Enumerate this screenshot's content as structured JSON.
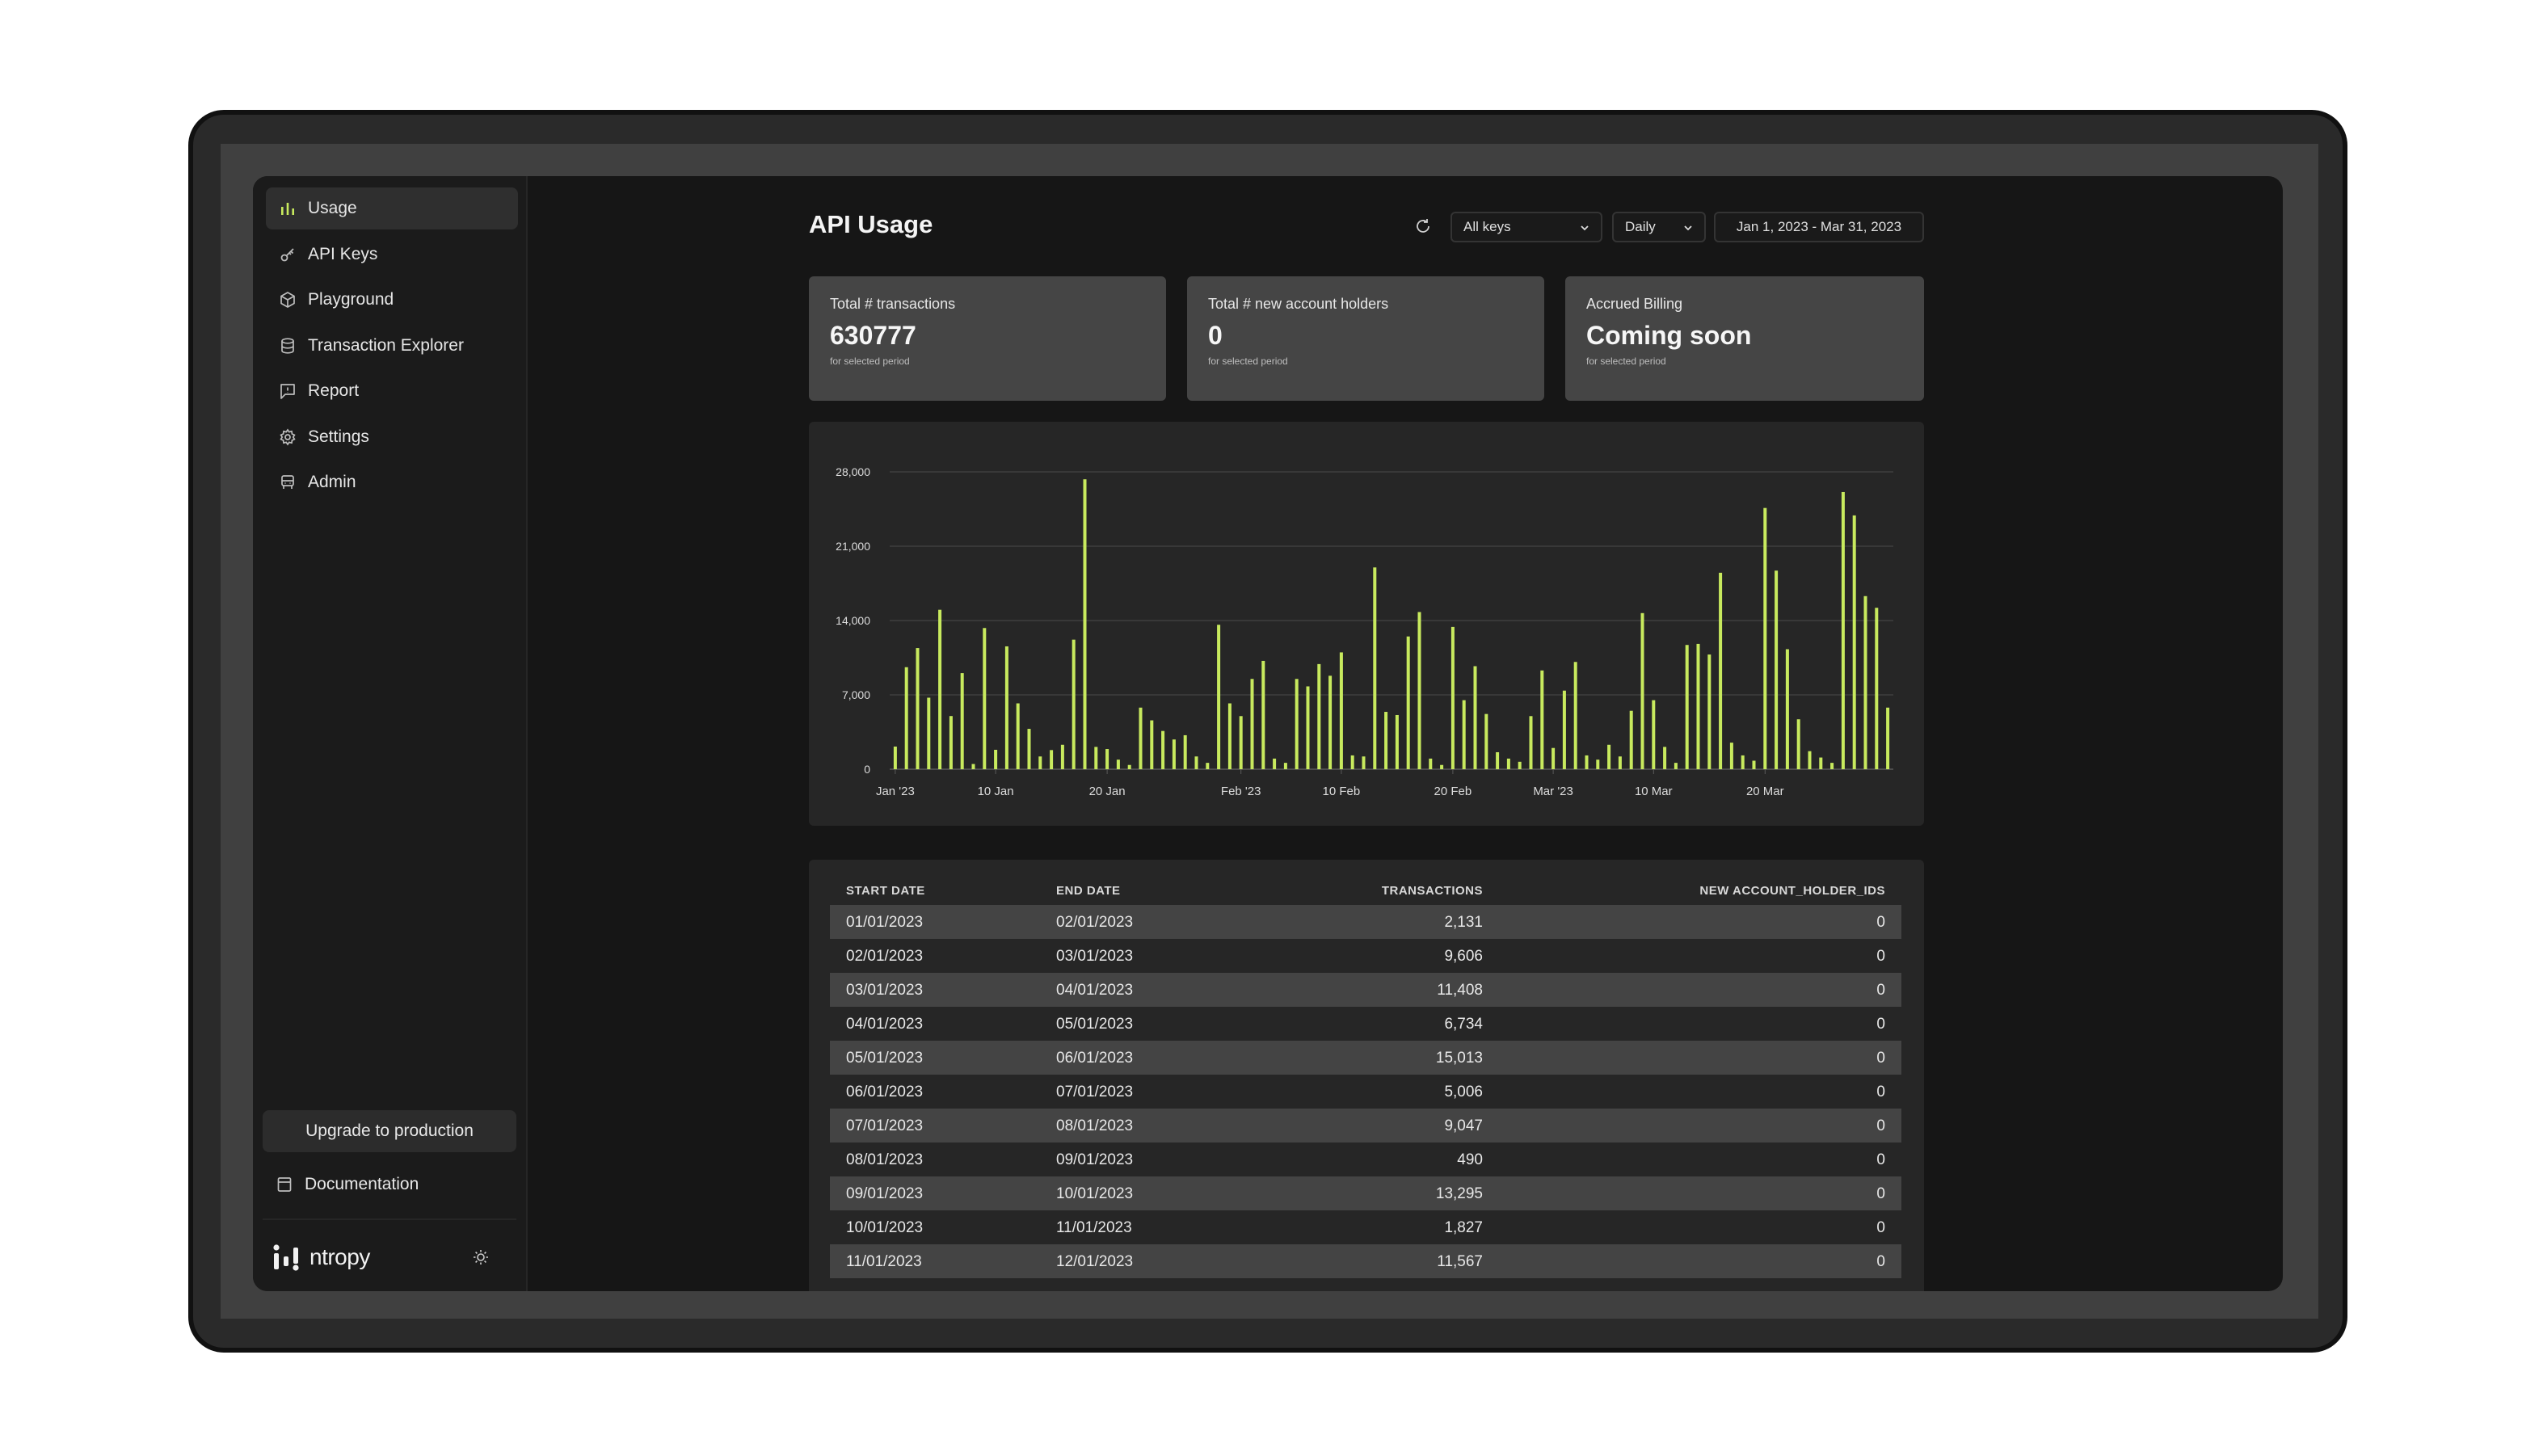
{
  "sidebar": {
    "items": [
      {
        "label": "Usage",
        "icon": "bar-chart-icon",
        "active": true
      },
      {
        "label": "API Keys",
        "icon": "key-icon"
      },
      {
        "label": "Playground",
        "icon": "cube-icon"
      },
      {
        "label": "Transaction Explorer",
        "icon": "database-icon"
      },
      {
        "label": "Report",
        "icon": "flag-message-icon"
      },
      {
        "label": "Settings",
        "icon": "gear-icon"
      },
      {
        "label": "Admin",
        "icon": "admin-icon"
      }
    ],
    "upgrade_label": "Upgrade to production",
    "docs_label": "Documentation",
    "brand": "ntropy"
  },
  "header": {
    "title": "API Usage",
    "keys_select": "All keys",
    "interval_select": "Daily",
    "date_range": "Jan 1, 2023 - Mar 31, 2023"
  },
  "cards": [
    {
      "label": "Total # transactions",
      "value": "630777",
      "sub": "for selected period"
    },
    {
      "label": "Total # new account holders",
      "value": "0",
      "sub": "for selected period"
    },
    {
      "label": "Accrued Billing",
      "value": "Coming soon",
      "sub": "for selected period"
    }
  ],
  "colors": {
    "accent": "#c8ea5e",
    "background": "#161616",
    "card": "#454545"
  },
  "chart_data": {
    "type": "bar",
    "ylim": [
      0,
      28000
    ],
    "y_ticks": [
      "0",
      "7,000",
      "14,000",
      "21,000",
      "28,000"
    ],
    "x_tick_labels": [
      "Jan '23",
      "10 Jan",
      "20 Jan",
      "Feb '23",
      "10 Feb",
      "20 Feb",
      "Mar '23",
      "10 Mar",
      "20 Mar"
    ],
    "x_tick_days": [
      1,
      10,
      20,
      32,
      41,
      51,
      60,
      69,
      79
    ],
    "grid": true,
    "values": [
      2131,
      9606,
      11408,
      6734,
      15013,
      5006,
      9047,
      490,
      13295,
      1827,
      11567,
      6200,
      3800,
      1200,
      1800,
      2300,
      12200,
      27300,
      2100,
      1900,
      900,
      400,
      5800,
      4600,
      3600,
      2800,
      3200,
      1200,
      600,
      13600,
      6200,
      5000,
      8500,
      10200,
      1000,
      600,
      8500,
      7800,
      9900,
      8800,
      11000,
      1300,
      1200,
      19000,
      5400,
      5100,
      12500,
      14800,
      1000,
      400,
      13400,
      6500,
      9700,
      5200,
      1600,
      1000,
      700,
      5000,
      9300,
      2000,
      7400,
      10100,
      1300,
      900,
      2300,
      1200,
      5500,
      14700,
      6500,
      2100,
      600,
      11700,
      11800,
      10800,
      18500,
      2500,
      1300,
      800,
      24600,
      18700,
      11300,
      4700,
      1700,
      1100,
      600,
      26100,
      23900,
      16300,
      15200,
      5800
    ]
  },
  "table": {
    "headers": [
      "START DATE",
      "END DATE",
      "TRANSACTIONS",
      "NEW ACCOUNT_HOLDER_IDS"
    ],
    "rows": [
      [
        "01/01/2023",
        "02/01/2023",
        "2,131",
        "0"
      ],
      [
        "02/01/2023",
        "03/01/2023",
        "9,606",
        "0"
      ],
      [
        "03/01/2023",
        "04/01/2023",
        "11,408",
        "0"
      ],
      [
        "04/01/2023",
        "05/01/2023",
        "6,734",
        "0"
      ],
      [
        "05/01/2023",
        "06/01/2023",
        "15,013",
        "0"
      ],
      [
        "06/01/2023",
        "07/01/2023",
        "5,006",
        "0"
      ],
      [
        "07/01/2023",
        "08/01/2023",
        "9,047",
        "0"
      ],
      [
        "08/01/2023",
        "09/01/2023",
        "490",
        "0"
      ],
      [
        "09/01/2023",
        "10/01/2023",
        "13,295",
        "0"
      ],
      [
        "10/01/2023",
        "11/01/2023",
        "1,827",
        "0"
      ],
      [
        "11/01/2023",
        "12/01/2023",
        "11,567",
        "0"
      ]
    ]
  }
}
